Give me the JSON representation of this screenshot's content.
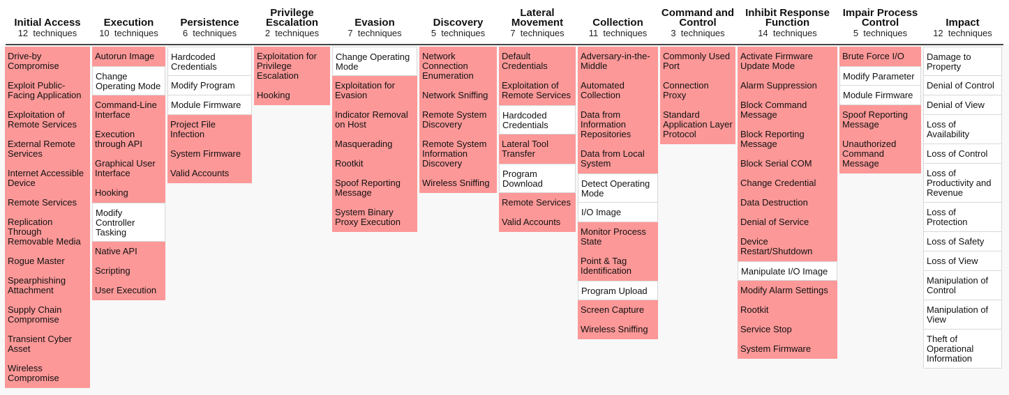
{
  "tactics": [
    {
      "name": "Initial Access",
      "count": "12",
      "unit": "techniques",
      "techniques": [
        {
          "label": "Drive-by Compromise",
          "hl": true
        },
        {
          "label": "Exploit Public-Facing Application",
          "hl": true
        },
        {
          "label": "Exploitation of Remote Services",
          "hl": true
        },
        {
          "label": "External Remote Services",
          "hl": true
        },
        {
          "label": "Internet Accessible Device",
          "hl": true
        },
        {
          "label": "Remote Services",
          "hl": true
        },
        {
          "label": "Replication Through Removable Media",
          "hl": true
        },
        {
          "label": "Rogue Master",
          "hl": true
        },
        {
          "label": "Spearphishing Attachment",
          "hl": true
        },
        {
          "label": "Supply Chain Compromise",
          "hl": true
        },
        {
          "label": "Transient Cyber Asset",
          "hl": true
        },
        {
          "label": "Wireless Compromise",
          "hl": true
        }
      ]
    },
    {
      "name": "Execution",
      "count": "10",
      "unit": "techniques",
      "techniques": [
        {
          "label": "Autorun Image",
          "hl": true
        },
        {
          "label": "Change Operating Mode",
          "hl": false
        },
        {
          "label": "Command-Line Interface",
          "hl": true
        },
        {
          "label": "Execution through API",
          "hl": true
        },
        {
          "label": "Graphical User Interface",
          "hl": true
        },
        {
          "label": "Hooking",
          "hl": true
        },
        {
          "label": "Modify Controller Tasking",
          "hl": false
        },
        {
          "label": "Native API",
          "hl": true
        },
        {
          "label": "Scripting",
          "hl": true
        },
        {
          "label": "User Execution",
          "hl": true
        }
      ]
    },
    {
      "name": "Persistence",
      "count": "6",
      "unit": "techniques",
      "techniques": [
        {
          "label": "Hardcoded Credentials",
          "hl": false
        },
        {
          "label": "Modify Program",
          "hl": false
        },
        {
          "label": "Module Firmware",
          "hl": false
        },
        {
          "label": "Project File Infection",
          "hl": true
        },
        {
          "label": "System Firmware",
          "hl": true
        },
        {
          "label": "Valid Accounts",
          "hl": true
        }
      ]
    },
    {
      "name": "Privilege Escalation",
      "count": "2",
      "unit": "techniques",
      "techniques": [
        {
          "label": "Exploitation for Privilege Escalation",
          "hl": true
        },
        {
          "label": "Hooking",
          "hl": true
        }
      ]
    },
    {
      "name": "Evasion",
      "count": "7",
      "unit": "techniques",
      "techniques": [
        {
          "label": "Change Operating Mode",
          "hl": false
        },
        {
          "label": "Exploitation for Evasion",
          "hl": true
        },
        {
          "label": "Indicator Removal on Host",
          "hl": true
        },
        {
          "label": "Masquerading",
          "hl": true
        },
        {
          "label": "Rootkit",
          "hl": true
        },
        {
          "label": "Spoof Reporting Message",
          "hl": true
        },
        {
          "label": "System Binary Proxy Execution",
          "hl": true
        }
      ]
    },
    {
      "name": "Discovery",
      "count": "5",
      "unit": "techniques",
      "techniques": [
        {
          "label": "Network Connection Enumeration",
          "hl": true
        },
        {
          "label": "Network Sniffing",
          "hl": true
        },
        {
          "label": "Remote System Discovery",
          "hl": true
        },
        {
          "label": "Remote System Information Discovery",
          "hl": true
        },
        {
          "label": "Wireless Sniffing",
          "hl": true
        }
      ]
    },
    {
      "name": "Lateral Movement",
      "count": "7",
      "unit": "techniques",
      "techniques": [
        {
          "label": "Default Credentials",
          "hl": true
        },
        {
          "label": "Exploitation of Remote Services",
          "hl": true
        },
        {
          "label": "Hardcoded Credentials",
          "hl": false
        },
        {
          "label": "Lateral Tool Transfer",
          "hl": true
        },
        {
          "label": "Program Download",
          "hl": false
        },
        {
          "label": "Remote Services",
          "hl": true
        },
        {
          "label": "Valid Accounts",
          "hl": true
        }
      ]
    },
    {
      "name": "Collection",
      "count": "11",
      "unit": "techniques",
      "techniques": [
        {
          "label": "Adversary-in-the-Middle",
          "hl": true
        },
        {
          "label": "Automated Collection",
          "hl": true
        },
        {
          "label": "Data from Information Repositories",
          "hl": true
        },
        {
          "label": "Data from Local System",
          "hl": true
        },
        {
          "label": "Detect Operating Mode",
          "hl": false
        },
        {
          "label": "I/O Image",
          "hl": false
        },
        {
          "label": "Monitor Process State",
          "hl": true
        },
        {
          "label": "Point & Tag Identification",
          "hl": true
        },
        {
          "label": "Program Upload",
          "hl": false
        },
        {
          "label": "Screen Capture",
          "hl": true
        },
        {
          "label": "Wireless Sniffing",
          "hl": true
        }
      ]
    },
    {
      "name": "Command and Control",
      "count": "3",
      "unit": "techniques",
      "techniques": [
        {
          "label": "Commonly Used Port",
          "hl": true
        },
        {
          "label": "Connection Proxy",
          "hl": true
        },
        {
          "label": "Standard Application Layer Protocol",
          "hl": true
        }
      ]
    },
    {
      "name": "Inhibit Response Function",
      "count": "14",
      "unit": "techniques",
      "techniques": [
        {
          "label": "Activate Firmware Update Mode",
          "hl": true
        },
        {
          "label": "Alarm Suppression",
          "hl": true
        },
        {
          "label": "Block Command Message",
          "hl": true
        },
        {
          "label": "Block Reporting Message",
          "hl": true
        },
        {
          "label": "Block Serial COM",
          "hl": true
        },
        {
          "label": "Change Credential",
          "hl": true
        },
        {
          "label": "Data Destruction",
          "hl": true
        },
        {
          "label": "Denial of Service",
          "hl": true
        },
        {
          "label": "Device Restart/Shutdown",
          "hl": true
        },
        {
          "label": "Manipulate I/O Image",
          "hl": false
        },
        {
          "label": "Modify Alarm Settings",
          "hl": true
        },
        {
          "label": "Rootkit",
          "hl": true
        },
        {
          "label": "Service Stop",
          "hl": true
        },
        {
          "label": "System Firmware",
          "hl": true
        }
      ]
    },
    {
      "name": "Impair Process Control",
      "count": "5",
      "unit": "techniques",
      "techniques": [
        {
          "label": "Brute Force I/O",
          "hl": true
        },
        {
          "label": "Modify Parameter",
          "hl": false
        },
        {
          "label": "Module Firmware",
          "hl": false
        },
        {
          "label": "Spoof Reporting Message",
          "hl": true
        },
        {
          "label": "Unauthorized Command Message",
          "hl": true
        }
      ]
    },
    {
      "name": "Impact",
      "count": "12",
      "unit": "techniques",
      "techniques": [
        {
          "label": "Damage to Property",
          "hl": false
        },
        {
          "label": "Denial of Control",
          "hl": false
        },
        {
          "label": "Denial of View",
          "hl": false
        },
        {
          "label": "Loss of Availability",
          "hl": false
        },
        {
          "label": "Loss of Control",
          "hl": false
        },
        {
          "label": "Loss of Productivity and Revenue",
          "hl": false
        },
        {
          "label": "Loss of Protection",
          "hl": false
        },
        {
          "label": "Loss of Safety",
          "hl": false
        },
        {
          "label": "Loss of View",
          "hl": false
        },
        {
          "label": "Manipulation of Control",
          "hl": false
        },
        {
          "label": "Manipulation of View",
          "hl": false
        },
        {
          "label": "Theft of Operational Information",
          "hl": false
        }
      ]
    }
  ],
  "colors": {
    "highlight": "#fd9898",
    "normal": "#ffffff"
  }
}
